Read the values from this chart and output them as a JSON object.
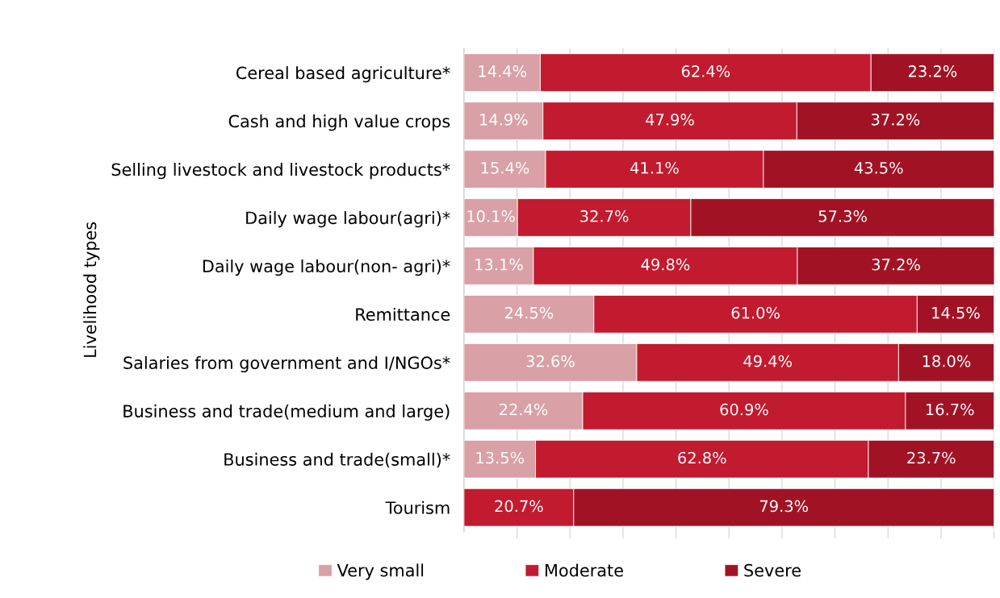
{
  "chart_data": {
    "type": "bar",
    "orientation": "horizontal",
    "stacked": true,
    "ylabel": "Livelihood types",
    "categories": [
      "Cereal based agriculture*",
      "Cash and high value crops",
      "Selling livestock and livestock products*",
      "Daily wage labour(agri)*",
      "Daily wage labour(non- agri)*",
      "Remittance",
      "Salaries from government and I/NGOs*",
      "Business and trade(medium and large)",
      "Business and trade(small)*",
      "Tourism"
    ],
    "series": [
      {
        "name": "Very small",
        "color": "#d9a0a5",
        "values": [
          14.4,
          14.9,
          15.4,
          10.1,
          13.1,
          24.5,
          32.6,
          22.4,
          13.5,
          null
        ],
        "value_labels": [
          "14.4%",
          "14.9%",
          "15.4%",
          "10.1%",
          "13.1%",
          "24.5%",
          "32.6%",
          "22.4%",
          "13.5%",
          null
        ]
      },
      {
        "name": "Moderate",
        "color": "#c21a2e",
        "values": [
          62.4,
          47.9,
          41.1,
          32.7,
          49.8,
          61.0,
          49.4,
          60.9,
          62.8,
          20.7
        ],
        "value_labels": [
          "62.4%",
          "47.9%",
          "41.1%",
          "32.7%",
          "49.8%",
          "61.0%",
          "49.4%",
          "60.9%",
          "62.8%",
          "20.7%"
        ]
      },
      {
        "name": "Severe",
        "color": "#a11324",
        "values": [
          23.2,
          37.2,
          43.5,
          57.3,
          37.2,
          14.5,
          18.0,
          16.7,
          23.7,
          79.3
        ],
        "value_labels": [
          "23.2%",
          "37.2%",
          "43.5%",
          "57.3%",
          "37.2%",
          "14.5%",
          "18.0%",
          "16.7%",
          "23.7%",
          "79.3%"
        ]
      }
    ],
    "xlim": [
      0,
      100
    ],
    "xticks": [
      {
        "value": 10,
        "label": null
      },
      {
        "value": 20,
        "label": null
      },
      {
        "value": 30,
        "label": null
      },
      {
        "value": 40,
        "label": null
      },
      {
        "value": 50,
        "label": null
      },
      {
        "value": 60,
        "label": null
      },
      {
        "value": 70,
        "label": null
      },
      {
        "value": 80,
        "label": null
      },
      {
        "value": 90,
        "label": null
      },
      {
        "value": 100,
        "label": null
      }
    ],
    "tick_labels": "y",
    "grid": "x",
    "legend": "bottom"
  }
}
